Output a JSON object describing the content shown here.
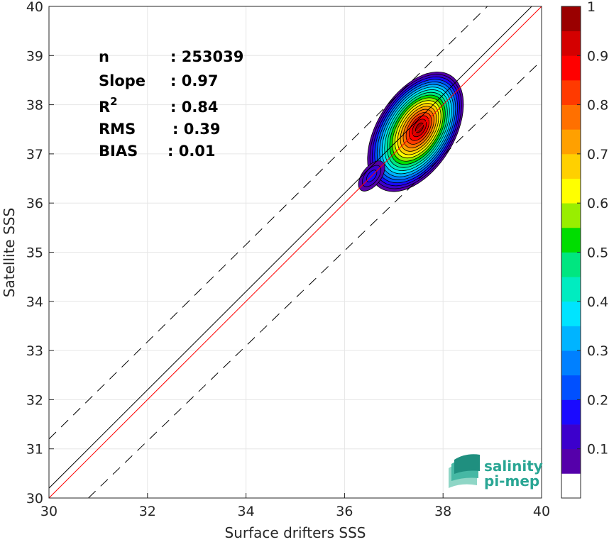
{
  "chart_data": {
    "type": "heatmap",
    "xlabel": "Surface drifters SSS",
    "ylabel": "Satellite SSS",
    "xlim": [
      30,
      40
    ],
    "ylim": [
      30,
      40
    ],
    "x_ticks": [
      "30",
      "32",
      "34",
      "36",
      "38",
      "40"
    ],
    "y_ticks": [
      "30",
      "31",
      "32",
      "33",
      "34",
      "35",
      "36",
      "37",
      "38",
      "39",
      "40"
    ],
    "grid": true,
    "stats": [
      {
        "name": "n",
        "value": ": 253039"
      },
      {
        "name": "Slope",
        "value": ": 0.97"
      },
      {
        "name": "R",
        "superscript": "2",
        "value": ": 0.84"
      },
      {
        "name": "RMS",
        "value": ": 0.39"
      },
      {
        "name": "BIAS",
        "value": ": 0.01"
      }
    ],
    "lines": [
      {
        "role": "identity",
        "color": "#000000",
        "style": "solid",
        "points": [
          [
            30,
            30.2
          ],
          [
            40,
            40.2
          ]
        ]
      },
      {
        "role": "fit",
        "color": "#ff0000",
        "style": "solid",
        "points": [
          [
            30,
            30
          ],
          [
            40,
            40
          ]
        ]
      },
      {
        "role": "upper-bound",
        "color": "#000000",
        "style": "dashed",
        "points": [
          [
            30,
            31.2
          ],
          [
            38.9,
            40
          ]
        ]
      },
      {
        "role": "lower-bound",
        "color": "#000000",
        "style": "dashed",
        "points": [
          [
            30.8,
            30
          ],
          [
            40,
            38.9
          ]
        ]
      }
    ],
    "density_peaks": [
      {
        "x": 37.5,
        "y": 37.5,
        "max": 1.0
      },
      {
        "x": 36.55,
        "y": 36.55,
        "max": 0.12
      }
    ],
    "colorbar": {
      "ticks": [
        "0.1",
        "0.2",
        "0.3",
        "0.4",
        "0.5",
        "0.6",
        "0.7",
        "0.8",
        "0.9",
        "1"
      ],
      "range": [
        0,
        1
      ],
      "colors": [
        "#ffffff",
        "#5500aa",
        "#3c00cc",
        "#1a0aff",
        "#0050ff",
        "#0080ff",
        "#00b4ff",
        "#00e4ff",
        "#00ecc0",
        "#00e680",
        "#00dd00",
        "#99ee00",
        "#ffff00",
        "#ffd000",
        "#ffa000",
        "#ff7000",
        "#ff3a00",
        "#ff0000",
        "#d40000",
        "#9a0000"
      ]
    }
  },
  "logo": {
    "line1": "salinity",
    "line2": "pi-mep"
  }
}
